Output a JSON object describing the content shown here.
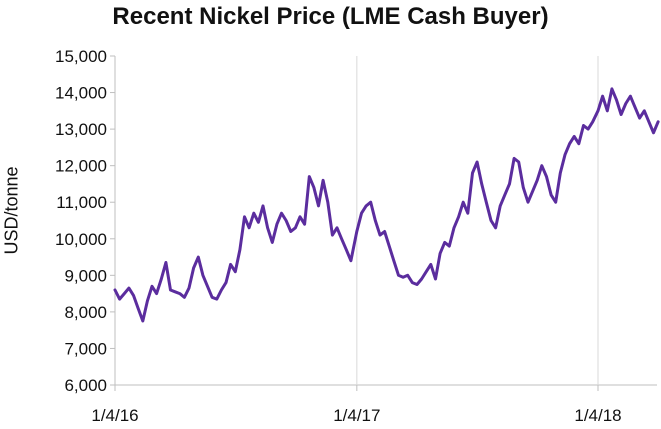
{
  "chart_data": {
    "type": "line",
    "title": "Recent Nickel Price (LME Cash Buyer)",
    "xlabel": "",
    "ylabel": "USD/tonne",
    "ylim": [
      6000,
      15000
    ],
    "yticks": [
      "6,000",
      "7,000",
      "8,000",
      "9,000",
      "10,000",
      "11,000",
      "12,000",
      "13,000",
      "14,000",
      "15,000"
    ],
    "xticks": [
      "1/4/16",
      "1/4/17",
      "1/4/18"
    ],
    "grid": "vertical",
    "line_color": "#5b2d9e",
    "series": [
      {
        "x": [
          "2016-01-04",
          "2016-01-11",
          "2016-01-18",
          "2016-01-25",
          "2016-02-01",
          "2016-02-08",
          "2016-02-15",
          "2016-02-22",
          "2016-02-29",
          "2016-03-07",
          "2016-03-14",
          "2016-03-21",
          "2016-03-28",
          "2016-04-04",
          "2016-04-11",
          "2016-04-18",
          "2016-04-25",
          "2016-05-02",
          "2016-05-09",
          "2016-05-16",
          "2016-05-23",
          "2016-05-30",
          "2016-06-06",
          "2016-06-13",
          "2016-06-20",
          "2016-06-27",
          "2016-07-04",
          "2016-07-11",
          "2016-07-18",
          "2016-07-25",
          "2016-08-01",
          "2016-08-08",
          "2016-08-15",
          "2016-08-22",
          "2016-08-29",
          "2016-09-05",
          "2016-09-12",
          "2016-09-19",
          "2016-09-26",
          "2016-10-03",
          "2016-10-10",
          "2016-10-17",
          "2016-10-24",
          "2016-10-31",
          "2016-11-07",
          "2016-11-14",
          "2016-11-21",
          "2016-11-28",
          "2016-12-05",
          "2016-12-12",
          "2016-12-19",
          "2016-12-26",
          "2017-01-04",
          "2017-01-11",
          "2017-01-18",
          "2017-01-25",
          "2017-02-01",
          "2017-02-08",
          "2017-02-15",
          "2017-02-22",
          "2017-03-01",
          "2017-03-08",
          "2017-03-15",
          "2017-03-22",
          "2017-03-29",
          "2017-04-05",
          "2017-04-12",
          "2017-04-19",
          "2017-04-26",
          "2017-05-03",
          "2017-05-10",
          "2017-05-17",
          "2017-05-24",
          "2017-05-31",
          "2017-06-07",
          "2017-06-14",
          "2017-06-21",
          "2017-06-28",
          "2017-07-05",
          "2017-07-12",
          "2017-07-19",
          "2017-07-26",
          "2017-08-02",
          "2017-08-09",
          "2017-08-16",
          "2017-08-23",
          "2017-08-30",
          "2017-09-06",
          "2017-09-13",
          "2017-09-20",
          "2017-09-27",
          "2017-10-04",
          "2017-10-11",
          "2017-10-18",
          "2017-10-25",
          "2017-11-01",
          "2017-11-08",
          "2017-11-15",
          "2017-11-22",
          "2017-11-29",
          "2017-12-06",
          "2017-12-13",
          "2017-12-20",
          "2017-12-27",
          "2018-01-04",
          "2018-01-11",
          "2018-01-18",
          "2018-01-25",
          "2018-02-01",
          "2018-02-08",
          "2018-02-15",
          "2018-02-22",
          "2018-03-01",
          "2018-03-08",
          "2018-03-15",
          "2018-03-22",
          "2018-03-29",
          "2018-04-05"
        ],
        "values": [
          8600,
          8350,
          8500,
          8650,
          8450,
          8100,
          7750,
          8300,
          8700,
          8500,
          8900,
          9350,
          8600,
          8550,
          8500,
          8400,
          8650,
          9200,
          9500,
          9000,
          8700,
          8400,
          8350,
          8600,
          8800,
          9300,
          9100,
          9700,
          10600,
          10300,
          10700,
          10450,
          10900,
          10300,
          9900,
          10400,
          10700,
          10500,
          10200,
          10300,
          10600,
          10400,
          11700,
          11400,
          10900,
          11600,
          11000,
          10100,
          10300,
          10000,
          9700,
          9400,
          10200,
          10700,
          10900,
          11000,
          10500,
          10100,
          10200,
          9800,
          9400,
          9000,
          8950,
          9000,
          8800,
          8750,
          8900,
          9100,
          9300,
          8900,
          9600,
          9900,
          9800,
          10300,
          10600,
          11000,
          10700,
          11800,
          12100,
          11500,
          11000,
          10500,
          10300,
          10900,
          11200,
          11500,
          12200,
          12100,
          11400,
          11000,
          11300,
          11600,
          12000,
          11700,
          11200,
          11000,
          11800,
          12300,
          12600,
          12800,
          12600,
          13100,
          13000,
          13200,
          13500,
          13900,
          13500,
          14100,
          13800,
          13400,
          13700,
          13900,
          13600,
          13300,
          13500,
          13200,
          12900,
          13200
        ]
      }
    ]
  }
}
